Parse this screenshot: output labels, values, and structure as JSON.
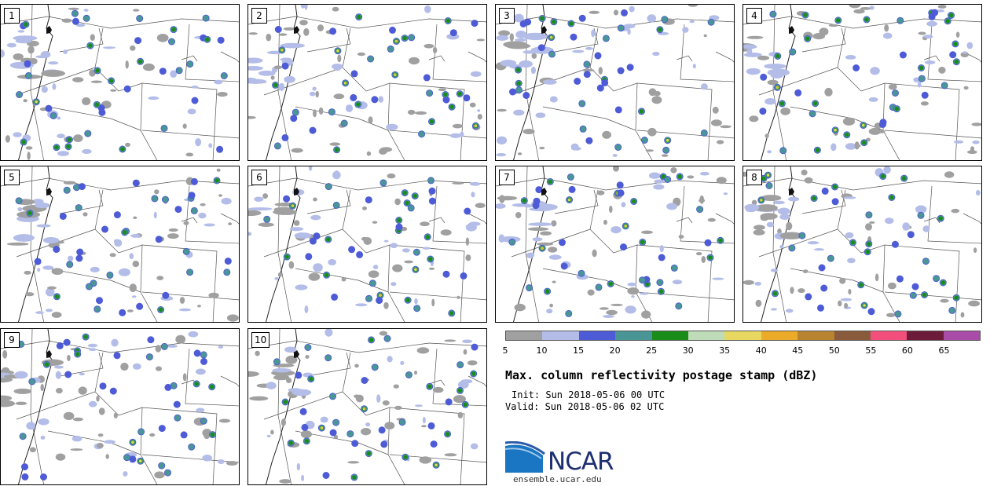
{
  "panels": [
    {
      "label": "1"
    },
    {
      "label": "2"
    },
    {
      "label": "3"
    },
    {
      "label": "4"
    },
    {
      "label": "5"
    },
    {
      "label": "6"
    },
    {
      "label": "7"
    },
    {
      "label": "8"
    },
    {
      "label": "9"
    },
    {
      "label": "10"
    }
  ],
  "colorbar": {
    "ticks": [
      "5",
      "10",
      "15",
      "20",
      "25",
      "30",
      "35",
      "40",
      "45",
      "50",
      "55",
      "60",
      "65"
    ],
    "colors": [
      "#a0a0a0",
      "#b3bde8",
      "#4d5bd6",
      "#4a9696",
      "#1a8c1a",
      "#bfdcb8",
      "#e8d862",
      "#ebaa27",
      "#b8842f",
      "#8a5a3c",
      "#f24f7c",
      "#6c1c38",
      "#a84ca8"
    ]
  },
  "title": "Max. column reflectivity postage stamp (dBZ)",
  "init": "Init: Sun 2018-05-06 00 UTC",
  "valid": "Valid: Sun 2018-05-06 02 UTC",
  "logo": {
    "name": "NCAR",
    "url": "ensemble.ucar.edu"
  }
}
